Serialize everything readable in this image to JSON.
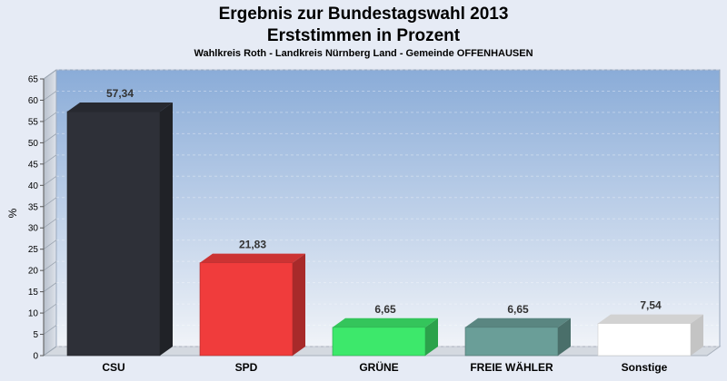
{
  "chart_data": {
    "type": "bar",
    "title_line1": "Ergebnis zur Bundestagswahl 2013",
    "title_line2": "Erststimmen in Prozent",
    "subtitle": "Wahlkreis Roth - Landkreis Nürnberg Land - Gemeinde OFFENHAUSEN",
    "ylabel": "%",
    "xlabel": "",
    "ylim": [
      0,
      65
    ],
    "yticks": [
      0,
      5,
      10,
      15,
      20,
      25,
      30,
      35,
      40,
      45,
      50,
      55,
      60,
      65
    ],
    "grid": true,
    "categories": [
      "CSU",
      "SPD",
      "GRÜNE",
      "FREIE WÄHLER",
      "Sonstige"
    ],
    "values": [
      57.34,
      21.83,
      6.65,
      6.65,
      7.54
    ],
    "value_labels": [
      "57,34",
      "21,83",
      "6,65",
      "6,65",
      "7,54"
    ],
    "colors": [
      "#2e3038",
      "#f03c3c",
      "#3de86b",
      "#6a9e98",
      "#ffffff"
    ]
  }
}
